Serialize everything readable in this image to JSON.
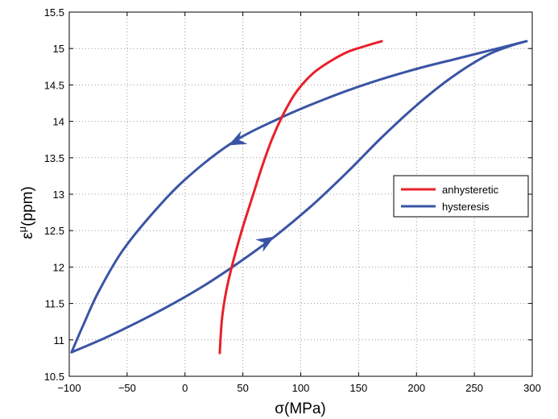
{
  "chart_data": {
    "type": "line",
    "xlabel": "σ(MPa)",
    "ylabel_base": "ε",
    "ylabel_sup": "μ",
    "ylabel_tail": "(ppm)",
    "xlim": [
      -100,
      300
    ],
    "ylim": [
      10.5,
      15.5
    ],
    "xticks": [
      -100,
      -50,
      0,
      50,
      100,
      150,
      200,
      250,
      300
    ],
    "xtick_labels": [
      "−100",
      "−50",
      "0",
      "50",
      "100",
      "150",
      "200",
      "250",
      "300"
    ],
    "yticks": [
      10.5,
      11,
      11.5,
      12,
      12.5,
      13,
      13.5,
      14,
      14.5,
      15,
      15.5
    ],
    "ytick_labels": [
      "10.5",
      "11",
      "11.5",
      "12",
      "12.5",
      "13",
      "13.5",
      "14",
      "14.5",
      "15",
      "15.5"
    ],
    "grid": true,
    "legend_position": "right",
    "series": [
      {
        "name": "anhysteretic",
        "color": "#e8202a",
        "points": [
          [
            30,
            10.82
          ],
          [
            32,
            11.3
          ],
          [
            36,
            11.7
          ],
          [
            42,
            12.1
          ],
          [
            50,
            12.55
          ],
          [
            58,
            12.95
          ],
          [
            66,
            13.35
          ],
          [
            75,
            13.75
          ],
          [
            85,
            14.1
          ],
          [
            96,
            14.4
          ],
          [
            110,
            14.65
          ],
          [
            125,
            14.82
          ],
          [
            140,
            14.95
          ],
          [
            155,
            15.03
          ],
          [
            170,
            15.1
          ]
        ]
      },
      {
        "name": "hysteresis",
        "color": "#3a54a4",
        "points": [
          [
            -98,
            10.83
          ],
          [
            -70,
            11.02
          ],
          [
            -40,
            11.25
          ],
          [
            -10,
            11.5
          ],
          [
            20,
            11.78
          ],
          [
            50,
            12.1
          ],
          [
            80,
            12.45
          ],
          [
            110,
            12.85
          ],
          [
            140,
            13.3
          ],
          [
            170,
            13.78
          ],
          [
            200,
            14.22
          ],
          [
            230,
            14.6
          ],
          [
            260,
            14.9
          ],
          [
            280,
            15.03
          ],
          [
            295,
            15.1
          ],
          [
            270,
            15.0
          ],
          [
            240,
            14.88
          ],
          [
            200,
            14.72
          ],
          [
            160,
            14.53
          ],
          [
            120,
            14.3
          ],
          [
            80,
            14.03
          ],
          [
            40,
            13.7
          ],
          [
            0,
            13.2
          ],
          [
            -30,
            12.7
          ],
          [
            -55,
            12.2
          ],
          [
            -75,
            11.65
          ],
          [
            -88,
            11.2
          ],
          [
            -98,
            10.83
          ]
        ]
      }
    ],
    "arrows": [
      {
        "x": 70,
        "y": 12.35,
        "dx": 1.0,
        "dy": 0.6
      },
      {
        "x": 45,
        "y": 13.73,
        "dx": -1.0,
        "dy": -0.5
      }
    ]
  }
}
